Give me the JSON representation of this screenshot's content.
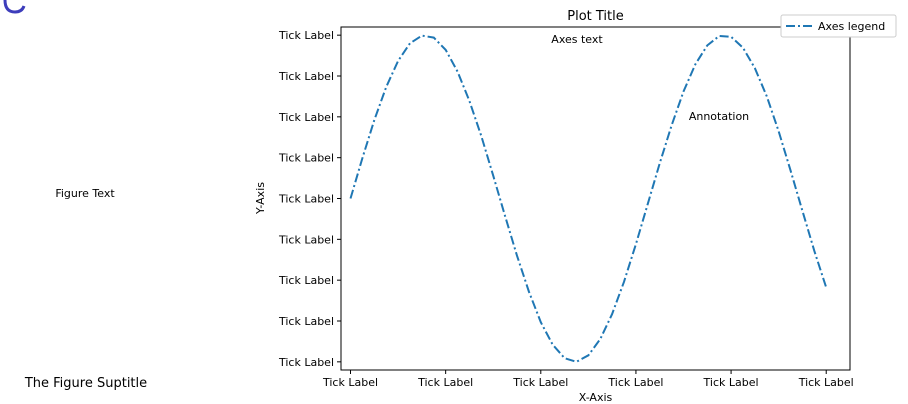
{
  "figure": {
    "figure_text": "Figure Text",
    "suptitle": "The Figure Suptitle"
  },
  "chart_data": {
    "type": "line",
    "title": "Plot Title",
    "xlabel": "X-Axis",
    "ylabel": "Y-Axis",
    "axes_text": "Axes text",
    "annotation": "Annotation",
    "legend": {
      "label": "Axes legend",
      "placement": "top-right, outside axes"
    },
    "line_style": "dash-dot",
    "color": "#1f77b4",
    "xlim": [
      -0.2,
      10.5
    ],
    "ylim": [
      -4.2,
      4.2
    ],
    "x_ticks": [
      0,
      2,
      4,
      6,
      8,
      10
    ],
    "x_tick_labels": [
      "Tick Label",
      "Tick Label",
      "Tick Label",
      "Tick Label",
      "Tick Label",
      "Tick Label"
    ],
    "y_ticks": [
      -4,
      -3,
      -2,
      -1,
      0,
      1,
      2,
      3,
      4
    ],
    "y_tick_labels": [
      "Tick Label",
      "Tick Label",
      "Tick Label",
      "Tick Label",
      "Tick Label",
      "Tick Label",
      "Tick Label",
      "Tick Label",
      "Tick Label"
    ],
    "series": [
      {
        "label": "Axes legend",
        "x": [
          0,
          0.25,
          0.5,
          0.75,
          1,
          1.25,
          1.5,
          1.75,
          2,
          2.25,
          2.5,
          2.75,
          3,
          3.25,
          3.5,
          3.75,
          4,
          4.25,
          4.5,
          4.75,
          5,
          5.25,
          5.5,
          5.75,
          6,
          6.25,
          6.5,
          6.75,
          7,
          7.25,
          7.5,
          7.75,
          8,
          8.25,
          8.5,
          8.75,
          9,
          9.25,
          9.5,
          9.75,
          10
        ],
        "y": [
          0,
          0.99,
          1.92,
          2.73,
          3.37,
          3.8,
          3.99,
          3.94,
          3.64,
          3.11,
          2.39,
          1.53,
          0.56,
          -0.43,
          -1.4,
          -2.28,
          -3.03,
          -3.58,
          -3.91,
          -4.0,
          -3.84,
          -3.44,
          -2.83,
          -2.04,
          -1.12,
          -0.13,
          0.86,
          1.79,
          2.62,
          3.29,
          3.75,
          3.98,
          3.96,
          3.69,
          3.19,
          2.5,
          1.65,
          0.69,
          -0.3,
          -1.28,
          -2.18
        ]
      }
    ]
  }
}
